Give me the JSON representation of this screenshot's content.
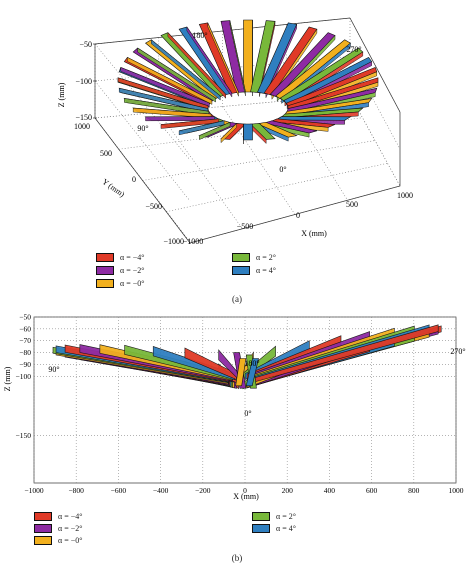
{
  "legend": [
    {
      "label": "α = −4°",
      "color": "#e03a27"
    },
    {
      "label": "α = −2°",
      "color": "#8e2ba3"
    },
    {
      "label": "α = −0°",
      "color": "#f2b01e"
    },
    {
      "label": "α = 2°",
      "color": "#78b83a"
    },
    {
      "label": "α = 4°",
      "color": "#2f7fc0"
    }
  ],
  "chart_data": [
    {
      "type": "scatter",
      "projection": "3d",
      "caption": "(a)",
      "xlabel": "X (mm)",
      "ylabel": "Y (mm)",
      "zlabel": "Z (mm)",
      "x_ticks": [
        "−1000",
        "−500",
        "0",
        "500",
        "1000"
      ],
      "y_ticks": [
        "1000",
        "500",
        "0",
        "−500",
        "−1000"
      ],
      "z_ticks": [
        "−50",
        "−100",
        "−150"
      ],
      "xlim": [
        -1000,
        1000
      ],
      "ylim": [
        -1000,
        1000
      ],
      "zlim": [
        -150,
        -50
      ],
      "angle_labels": [
        "180°",
        "270°",
        "90°",
        "0°"
      ],
      "n_blades": 36
    },
    {
      "type": "scatter",
      "projection": "side-view",
      "caption": "(b)",
      "xlabel": "X (mm)",
      "ylabel": "Z (mm)",
      "x_ticks": [
        "−1000",
        "−800",
        "−600",
        "−400",
        "−200",
        "0",
        "200",
        "400",
        "600",
        "800",
        "1000"
      ],
      "y_ticks": [
        "−50",
        "−60",
        "−70",
        "−80",
        "−90",
        "−100",
        "−150"
      ],
      "xlim": [
        -1000,
        1000
      ],
      "ylim": [
        -190,
        -50
      ],
      "angle_labels": [
        "90°",
        "180°",
        "0°",
        "270°"
      ],
      "n_blades": 36
    }
  ]
}
